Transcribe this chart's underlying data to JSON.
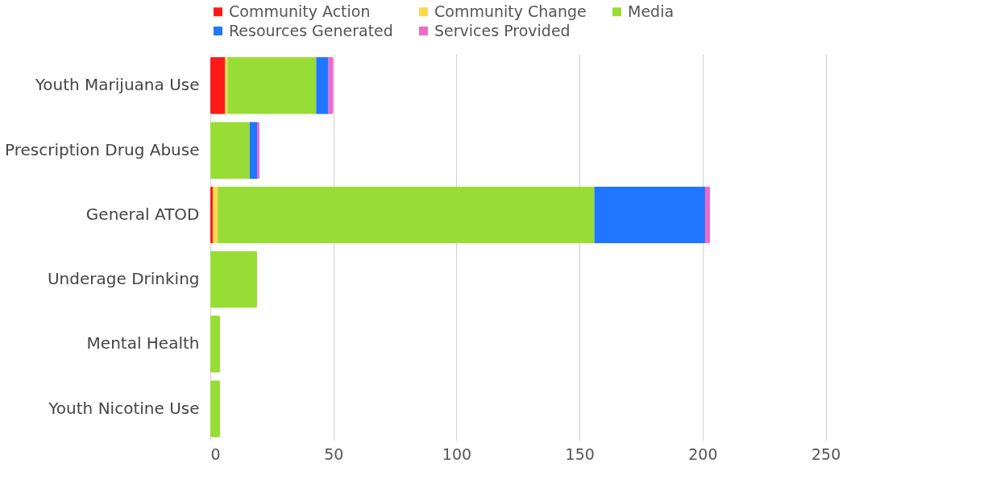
{
  "chart_data": {
    "type": "bar",
    "orientation": "horizontal",
    "stacked": true,
    "categories": [
      "Youth Marijuana Use",
      "Prescription Drug Abuse",
      "General ATOD",
      "Underage Drinking",
      "Mental Health",
      "Youth Nicotine Use"
    ],
    "series": [
      {
        "name": "Community Action",
        "color": "#ff1a1a",
        "values": [
          6,
          0,
          1,
          0,
          0,
          0
        ]
      },
      {
        "name": "Community Change",
        "color": "#ffd84d",
        "values": [
          1,
          0,
          2,
          0,
          0,
          0
        ]
      },
      {
        "name": "Media",
        "color": "#97dd36",
        "values": [
          36,
          16,
          153,
          19,
          4,
          4
        ]
      },
      {
        "name": "Resources Generated",
        "color": "#2176ff",
        "values": [
          5,
          3,
          45,
          0,
          0,
          0
        ]
      },
      {
        "name": "Services Provided",
        "color": "#f06ac8",
        "values": [
          2,
          1,
          2,
          0,
          0,
          0
        ]
      }
    ],
    "xlim": [
      0,
      275
    ],
    "xticks": [
      0,
      50,
      100,
      150,
      200,
      250
    ],
    "grid": "x",
    "legend": "top"
  }
}
